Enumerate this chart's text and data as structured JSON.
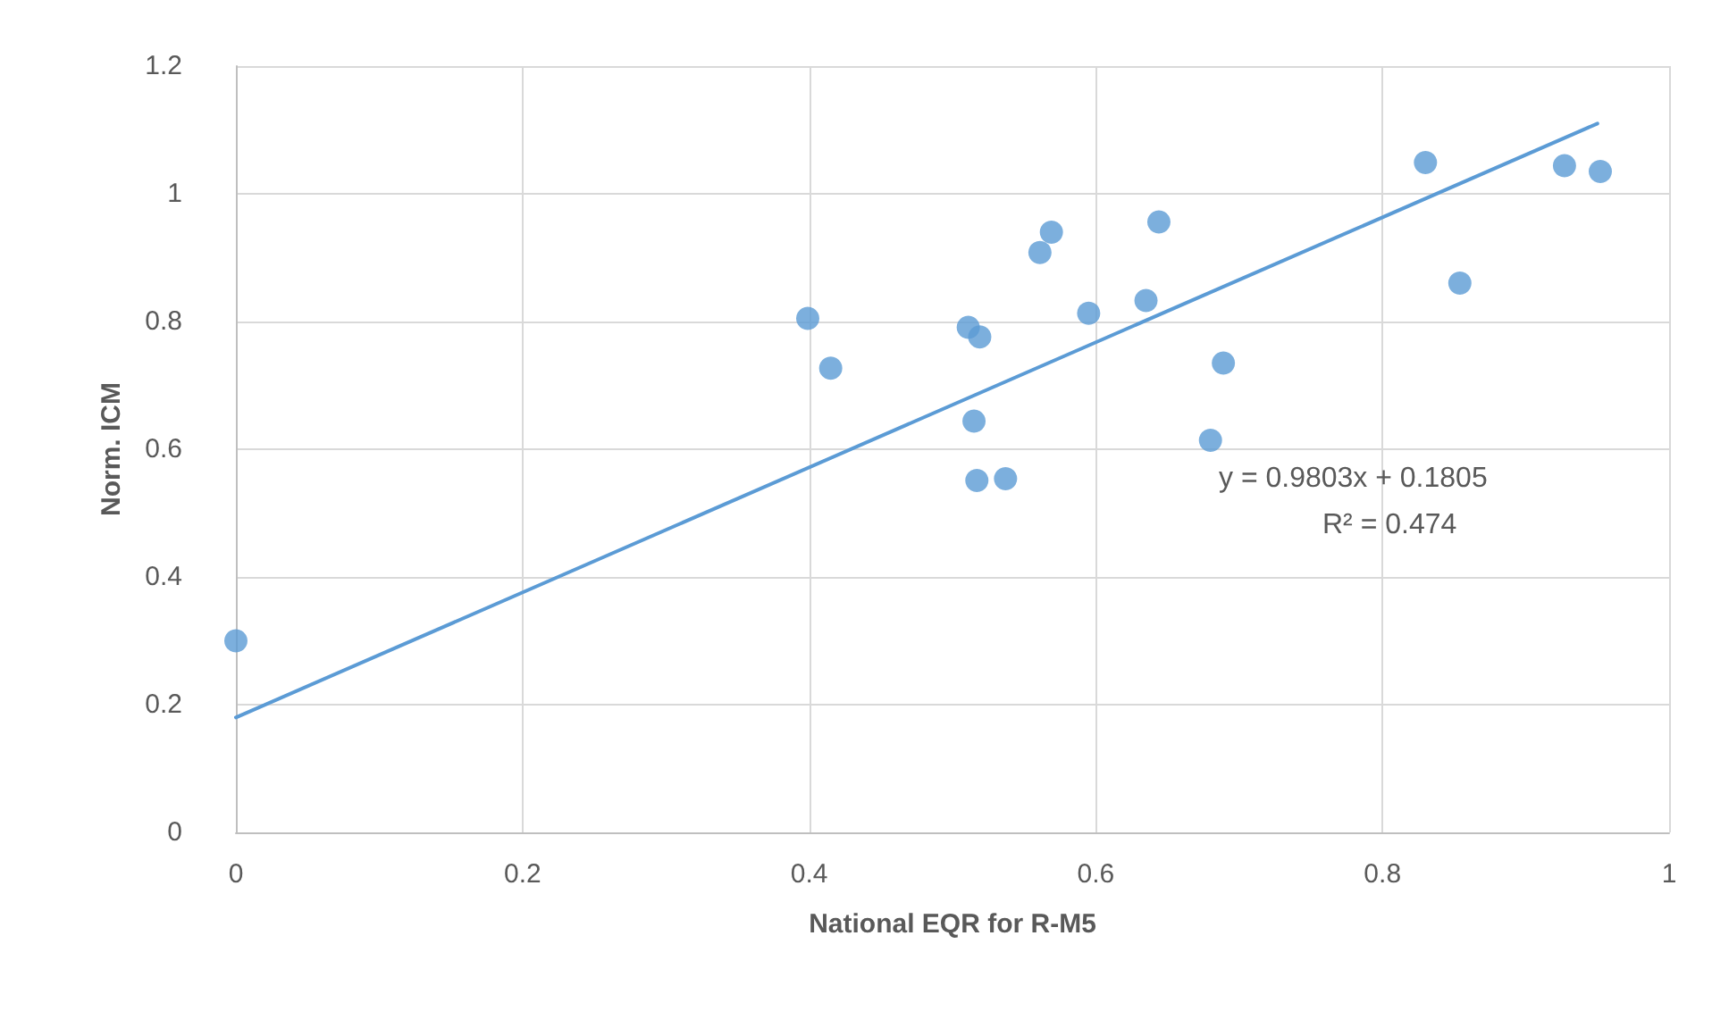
{
  "chart_data": {
    "type": "scatter",
    "xlabel": "National EQR for R-M5",
    "ylabel": "Norm. ICM",
    "series": [
      {
        "color": "#5b9bd5",
        "marker": "circle",
        "x": [
          0,
          0.399,
          0.415,
          0.511,
          0.519,
          0.515,
          0.517,
          0.537,
          0.561,
          0.569,
          0.595,
          0.635,
          0.644,
          0.689,
          0.68,
          0.83,
          0.927,
          0.952,
          0.854
        ],
        "values": [
          0.3,
          0.805,
          0.727,
          0.791,
          0.776,
          0.644,
          0.551,
          0.554,
          0.908,
          0.94,
          0.813,
          0.833,
          0.956,
          0.735,
          0.614,
          1.049,
          1.044,
          1.035,
          0.86
        ]
      },
      {
        "type": "line",
        "color": "#5b9bd5",
        "marker": "none",
        "line_style": "solid",
        "x": [
          0,
          0.95
        ],
        "values": [
          0.18,
          1.11
        ]
      }
    ],
    "xlim": [
      0,
      1
    ],
    "xticks": [
      0,
      0.2,
      0.4,
      0.6,
      0.8,
      1
    ],
    "ylim": [
      0,
      1.2
    ],
    "yticks": [
      0,
      0.2,
      0.4,
      0.6,
      0.8,
      1,
      1.2
    ],
    "grid": true,
    "annotations": [
      "y = 0.9803x + 0.1805",
      "R² = 0.474"
    ]
  }
}
